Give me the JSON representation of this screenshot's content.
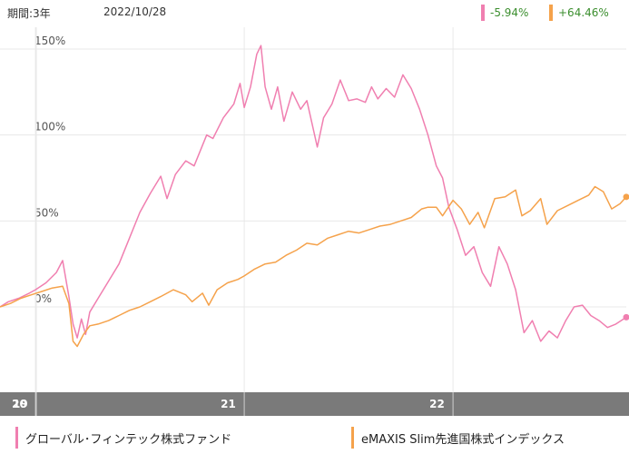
{
  "header": {
    "period_label": "期間:3年",
    "date": "2022/10/28",
    "fund_change": "-5.94%",
    "index_change": "+64.46%"
  },
  "colors": {
    "fund": "#f07fb0",
    "index": "#f5a24b",
    "axis_band": "#7a7a7a",
    "grid": "#e8e8e8"
  },
  "chart_data": {
    "type": "line",
    "y_ticks": [
      "150%",
      "100%",
      "50%",
      "0%"
    ],
    "y_tick_values": [
      150,
      100,
      50,
      0
    ],
    "ylim": [
      -40,
      155
    ],
    "x_ticks": [
      "19",
      "20",
      "21",
      "22"
    ],
    "xlim": [
      2019.83,
      2022.83
    ],
    "x_tick_positions": [
      2019.83,
      2020.0,
      2021.0,
      2022.0
    ],
    "grid": true,
    "legend": "bottom",
    "series": [
      {
        "name": "グローバル･フィンテック株式ファンド",
        "points": [
          [
            2019.83,
            0
          ],
          [
            2019.87,
            3
          ],
          [
            2019.92,
            5
          ],
          [
            2019.97,
            8
          ],
          [
            2020.0,
            10
          ],
          [
            2020.05,
            14
          ],
          [
            2020.1,
            20
          ],
          [
            2020.13,
            27
          ],
          [
            2020.16,
            6
          ],
          [
            2020.18,
            -10
          ],
          [
            2020.2,
            -18
          ],
          [
            2020.22,
            -7
          ],
          [
            2020.24,
            -16
          ],
          [
            2020.26,
            -3
          ],
          [
            2020.3,
            5
          ],
          [
            2020.35,
            15
          ],
          [
            2020.4,
            25
          ],
          [
            2020.45,
            40
          ],
          [
            2020.5,
            55
          ],
          [
            2020.55,
            66
          ],
          [
            2020.6,
            76
          ],
          [
            2020.63,
            63
          ],
          [
            2020.67,
            77
          ],
          [
            2020.72,
            85
          ],
          [
            2020.76,
            82
          ],
          [
            2020.82,
            100
          ],
          [
            2020.85,
            98
          ],
          [
            2020.9,
            110
          ],
          [
            2020.95,
            118
          ],
          [
            2020.98,
            130
          ],
          [
            2021.0,
            116
          ],
          [
            2021.03,
            128
          ],
          [
            2021.06,
            147
          ],
          [
            2021.08,
            152
          ],
          [
            2021.1,
            128
          ],
          [
            2021.13,
            115
          ],
          [
            2021.16,
            128
          ],
          [
            2021.19,
            108
          ],
          [
            2021.23,
            125
          ],
          [
            2021.27,
            115
          ],
          [
            2021.3,
            120
          ],
          [
            2021.35,
            93
          ],
          [
            2021.38,
            110
          ],
          [
            2021.42,
            118
          ],
          [
            2021.46,
            132
          ],
          [
            2021.5,
            120
          ],
          [
            2021.54,
            121
          ],
          [
            2021.58,
            119
          ],
          [
            2021.61,
            128
          ],
          [
            2021.64,
            121
          ],
          [
            2021.68,
            127
          ],
          [
            2021.72,
            122
          ],
          [
            2021.76,
            135
          ],
          [
            2021.8,
            127
          ],
          [
            2021.84,
            115
          ],
          [
            2021.88,
            100
          ],
          [
            2021.92,
            82
          ],
          [
            2021.95,
            75
          ],
          [
            2021.98,
            58
          ],
          [
            2022.02,
            45
          ],
          [
            2022.06,
            30
          ],
          [
            2022.1,
            35
          ],
          [
            2022.14,
            20
          ],
          [
            2022.18,
            12
          ],
          [
            2022.22,
            35
          ],
          [
            2022.26,
            25
          ],
          [
            2022.3,
            10
          ],
          [
            2022.34,
            -15
          ],
          [
            2022.38,
            -8
          ],
          [
            2022.42,
            -20
          ],
          [
            2022.46,
            -14
          ],
          [
            2022.5,
            -18
          ],
          [
            2022.54,
            -8
          ],
          [
            2022.58,
            0
          ],
          [
            2022.62,
            1
          ],
          [
            2022.66,
            -5
          ],
          [
            2022.7,
            -8
          ],
          [
            2022.74,
            -12
          ],
          [
            2022.78,
            -10
          ],
          [
            2022.83,
            -6
          ]
        ]
      },
      {
        "name": "eMAXIS Slim先進国株式インデックス",
        "points": [
          [
            2019.83,
            0
          ],
          [
            2019.88,
            2
          ],
          [
            2019.93,
            5
          ],
          [
            2019.98,
            7
          ],
          [
            2020.03,
            9
          ],
          [
            2020.08,
            11
          ],
          [
            2020.13,
            12
          ],
          [
            2020.16,
            2
          ],
          [
            2020.18,
            -20
          ],
          [
            2020.2,
            -23
          ],
          [
            2020.23,
            -16
          ],
          [
            2020.26,
            -11
          ],
          [
            2020.3,
            -10
          ],
          [
            2020.35,
            -8
          ],
          [
            2020.4,
            -5
          ],
          [
            2020.45,
            -2
          ],
          [
            2020.5,
            0
          ],
          [
            2020.55,
            3
          ],
          [
            2020.6,
            6
          ],
          [
            2020.66,
            10
          ],
          [
            2020.72,
            7
          ],
          [
            2020.75,
            3
          ],
          [
            2020.8,
            8
          ],
          [
            2020.83,
            1
          ],
          [
            2020.87,
            10
          ],
          [
            2020.92,
            14
          ],
          [
            2020.97,
            16
          ],
          [
            2021.0,
            18
          ],
          [
            2021.05,
            22
          ],
          [
            2021.1,
            25
          ],
          [
            2021.15,
            26
          ],
          [
            2021.2,
            30
          ],
          [
            2021.25,
            33
          ],
          [
            2021.3,
            37
          ],
          [
            2021.35,
            36
          ],
          [
            2021.4,
            40
          ],
          [
            2021.45,
            42
          ],
          [
            2021.5,
            44
          ],
          [
            2021.55,
            43
          ],
          [
            2021.6,
            45
          ],
          [
            2021.65,
            47
          ],
          [
            2021.7,
            48
          ],
          [
            2021.75,
            50
          ],
          [
            2021.8,
            52
          ],
          [
            2021.85,
            57
          ],
          [
            2021.88,
            58
          ],
          [
            2021.92,
            58
          ],
          [
            2021.95,
            53
          ],
          [
            2022.0,
            62
          ],
          [
            2022.04,
            57
          ],
          [
            2022.08,
            48
          ],
          [
            2022.12,
            55
          ],
          [
            2022.15,
            46
          ],
          [
            2022.2,
            63
          ],
          [
            2022.25,
            64
          ],
          [
            2022.3,
            68
          ],
          [
            2022.33,
            53
          ],
          [
            2022.37,
            56
          ],
          [
            2022.42,
            63
          ],
          [
            2022.45,
            48
          ],
          [
            2022.5,
            56
          ],
          [
            2022.55,
            59
          ],
          [
            2022.6,
            62
          ],
          [
            2022.65,
            65
          ],
          [
            2022.68,
            70
          ],
          [
            2022.72,
            67
          ],
          [
            2022.76,
            57
          ],
          [
            2022.8,
            60
          ],
          [
            2022.83,
            64
          ]
        ]
      }
    ]
  }
}
